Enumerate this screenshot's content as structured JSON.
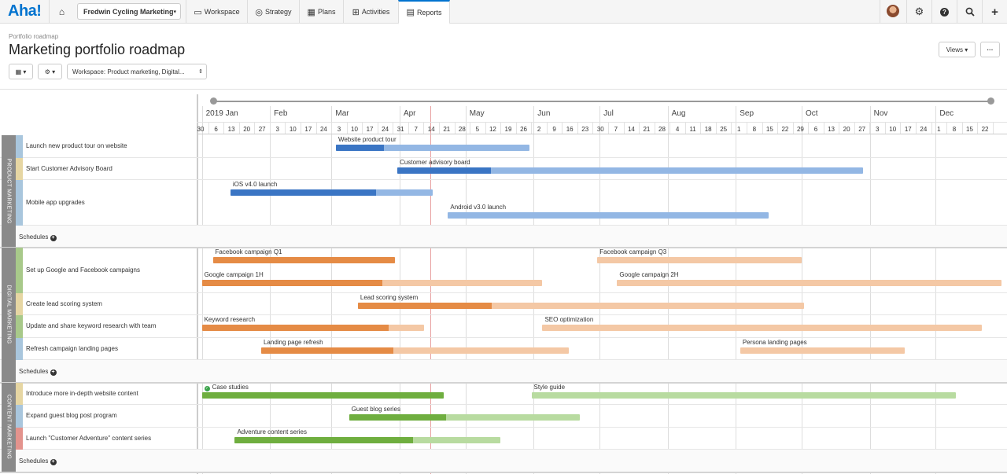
{
  "nav": {
    "logo": "Aha!",
    "workspace": "Fredwin Cycling Marketing",
    "tabs": [
      {
        "label": "Workspace",
        "icon": "workspace-icon"
      },
      {
        "label": "Strategy",
        "icon": "target-icon"
      },
      {
        "label": "Plans",
        "icon": "calendar-icon"
      },
      {
        "label": "Activities",
        "icon": "grid-icon"
      },
      {
        "label": "Reports",
        "icon": "report-icon",
        "active": true
      }
    ]
  },
  "header": {
    "breadcrumb": "Portfolio roadmap",
    "title": "Marketing portfolio roadmap",
    "views_label": "Views ▾",
    "more_label": "···",
    "workspace_filter": "Workspace: Product marketing, Digital..."
  },
  "timeline": {
    "months": [
      "2019 Jan",
      "Feb",
      "Mar",
      "Apr",
      "May",
      "Jun",
      "Jul",
      "Aug",
      "Sep",
      "Oct",
      "Nov",
      "Dec"
    ],
    "weeks": [
      "30",
      "6",
      "13",
      "20",
      "27",
      "3",
      "10",
      "17",
      "24",
      "3",
      "10",
      "17",
      "24",
      "31",
      "7",
      "14",
      "21",
      "28",
      "5",
      "12",
      "19",
      "26",
      "2",
      "9",
      "16",
      "23",
      "30",
      "7",
      "14",
      "21",
      "28",
      "4",
      "11",
      "18",
      "25",
      "1",
      "8",
      "15",
      "22",
      "29",
      "6",
      "13",
      "20",
      "27",
      "3",
      "10",
      "17",
      "24",
      "1",
      "8",
      "15",
      "22"
    ]
  },
  "groups": [
    {
      "name": "PRODUCT MARKETING",
      "rows": [
        {
          "label": "Launch new product tour on website",
          "color": "#a9c6dd",
          "bars": [
            {
              "label": "Website product tour",
              "start": "2019-03-03",
              "end": "2019-05-30",
              "progress": 0.25
            }
          ]
        },
        {
          "label": "Start Customer Advisory Board",
          "color": "#e6d6a3",
          "bars": [
            {
              "label": "Customer advisory board",
              "start": "2019-03-31",
              "end": "2019-10-29",
              "progress": 0.2
            }
          ]
        },
        {
          "label": "Mobile app upgrades",
          "color": "#a9c6dd",
          "bars": [
            {
              "label": "iOS v4.0 launch",
              "start": "2019-01-14",
              "end": "2019-04-16",
              "progress": 0.72,
              "row": 0
            },
            {
              "label": "Android v3.0 launch",
              "start": "2019-04-23",
              "end": "2019-09-16",
              "progress": 0,
              "row": 1
            }
          ]
        }
      ],
      "schedules": "Schedules"
    },
    {
      "name": "DIGITAL MARKETING",
      "rows": [
        {
          "label": "Set up Google and Facebook campaigns",
          "color": "#a8c98a",
          "bars": [
            {
              "label": "Facebook campaign Q1",
              "start": "2019-01-06",
              "end": "2019-03-30",
              "progress": 1,
              "row": 0
            },
            {
              "label": "Facebook campaign Q3",
              "start": "2019-06-30",
              "end": "2019-10-01",
              "progress": 0,
              "row": 0
            },
            {
              "label": "Google campaign 1H",
              "start": "2019-01-01",
              "end": "2019-06-05",
              "progress": 0.53,
              "row": 1
            },
            {
              "label": "Google campaign 2H",
              "start": "2019-07-09",
              "end": "2019-12-31",
              "progress": 0,
              "row": 1
            }
          ]
        },
        {
          "label": "Create lead scoring system",
          "color": "#e6d6a3",
          "bars": [
            {
              "label": "Lead scoring system",
              "start": "2019-03-13",
              "end": "2019-10-02",
              "progress": 0.3
            }
          ]
        },
        {
          "label": "Update and share keyword research with team",
          "color": "#a8c98a",
          "bars": [
            {
              "label": "Keyword research",
              "start": "2019-01-01",
              "end": "2019-04-12",
              "progress": 0.84
            },
            {
              "label": "SEO optimization",
              "start": "2019-06-05",
              "end": "2019-12-22",
              "progress": 0
            }
          ]
        },
        {
          "label": "Refresh campaign landing pages",
          "color": "#a9c6dd",
          "bars": [
            {
              "label": "Landing page refresh",
              "start": "2019-01-28",
              "end": "2019-06-17",
              "progress": 0.43
            },
            {
              "label": "Persona landing pages",
              "start": "2019-09-03",
              "end": "2019-11-17",
              "progress": 0
            }
          ]
        }
      ],
      "schedules": "Schedules"
    },
    {
      "name": "CONTENT MARKETING",
      "rows": [
        {
          "label": "Introduce more in-depth website content",
          "color": "#e6d6a3",
          "bars": [
            {
              "label": "Case studies",
              "start": "2019-01-01",
              "end": "2019-04-21",
              "progress": 1,
              "done": true
            },
            {
              "label": "Style guide",
              "start": "2019-05-31",
              "end": "2019-12-10",
              "progress": 0
            }
          ]
        },
        {
          "label": "Expand guest blog post program",
          "color": "#a9c6dd",
          "bars": [
            {
              "label": "Guest blog series",
              "start": "2019-03-09",
              "end": "2019-06-22",
              "progress": 0.42
            }
          ]
        },
        {
          "label": "Launch \"Customer Adventure\" content series",
          "color": "#e3938d",
          "bars": [
            {
              "label": "Adventure content series",
              "start": "2019-01-16",
              "end": "2019-05-17",
              "progress": 0.67
            }
          ]
        }
      ],
      "schedules": "Schedules"
    }
  ],
  "colors": {
    "blue_dark": "#3a75c4",
    "blue_light": "#93b7e4",
    "orange_dark": "#e58b45",
    "orange_light": "#f4c8a5",
    "green_dark": "#6fae3f",
    "green_light": "#b8dba0"
  }
}
